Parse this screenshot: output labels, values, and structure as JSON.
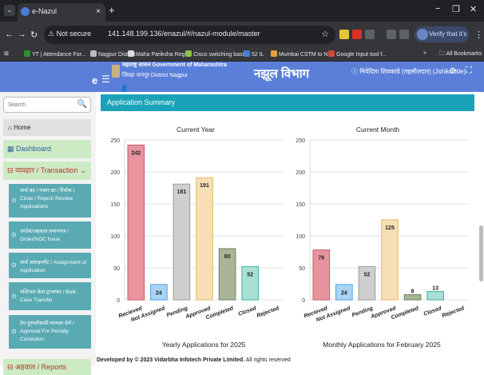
{
  "browser": {
    "tab_title": "e-Nazul",
    "tab_close": "×",
    "new_tab": "+",
    "not_secure": "Not secure",
    "url": "141.148.199.136/enazul/#/nazul-module/master",
    "profile_label": "Verify that it's you",
    "win_min": "−",
    "win_max": "❐",
    "win_close": "✕",
    "bookmarks": [
      {
        "label": "YT | Attendance For...",
        "color": "#2f8f2f"
      },
      {
        "label": "Nagpur District",
        "color": "#bbbbbb"
      },
      {
        "label": "Maha Pariksha Regi...",
        "color": "#dddddd"
      },
      {
        "label": "Cisco switching basi...",
        "color": "#8bc34a"
      },
      {
        "label": "52 IL",
        "color": "#4a7dd8"
      },
      {
        "label": "Mumbai CSTM to N...",
        "color": "#e3a03b"
      },
      {
        "label": "Google Input tool f...",
        "color": "#d44a3a"
      }
    ],
    "all_bookmarks": "All Bookmarks"
  },
  "header": {
    "brand": "e",
    "govt_line": "महाराष्ट्र शासन Government of Maharashtra",
    "district_line": "जिल्हा नागपूर District Nagpur",
    "title": "नझूल विभाग",
    "user_label": "निवेदिता शिवकांडे (तहसीलदार) (Jshikdode)"
  },
  "sidebar": {
    "search_placeholder": "Search",
    "home": "Home",
    "dashboard": "Dashboard",
    "transaction": "व्यवहार / Transaction",
    "sub_items": [
      "अर्ज बंद / नकार द्या / रिवोक / Close / Reject/ Revoke Applications",
      "आदेश/अहवाल प्रमाणपत्र / Order/NOC Issue",
      "अर्ज असाइनमेंट / Assignment of Application",
      "मल्टिपल केस ट्रान्सफर / Bulk Case Transfer",
      "देय दुरुस्तीसाठी मान्यता देणे / Approval For Penalty Correction"
    ],
    "reports": "अहवाल / Reports"
  },
  "content": {
    "summary_title": "Application Summary",
    "footer_bold": "Developed by © 2023 Vidarbha Infotech Private Limited.",
    "footer_rest": " All rights reserved"
  },
  "chart_data": [
    {
      "type": "bar",
      "title": "Current Year",
      "caption": "Yearly Applications for 2025",
      "categories": [
        "Recieved",
        "Not Assigned",
        "Pending",
        "Approved",
        "Completed",
        "Closed",
        "Rejected"
      ],
      "values": [
        242,
        24,
        181,
        191,
        80,
        52,
        0
      ],
      "ylim": [
        0,
        250
      ],
      "yticks": [
        0,
        50,
        100,
        150,
        200,
        250
      ],
      "colors": [
        "#e8949e",
        "#a9d4f5",
        "#cfcfcf",
        "#f7dfb5",
        "#a9b597",
        "#a8e0d5",
        "#cfcfcf"
      ]
    },
    {
      "type": "bar",
      "title": "Current Month",
      "caption": "Monthly Applications for February 2025",
      "categories": [
        "Recieved",
        "Not Assigned",
        "Pending",
        "Approved",
        "Completed",
        "Closed",
        "Rejected"
      ],
      "values": [
        78,
        24,
        52,
        125,
        8,
        13,
        0
      ],
      "ylim": [
        0,
        250
      ],
      "yticks": [
        0,
        50,
        100,
        150,
        200,
        250
      ],
      "colors": [
        "#e8949e",
        "#a9d4f5",
        "#cfcfcf",
        "#f7dfb5",
        "#a9b597",
        "#a8e0d5",
        "#cfcfcf"
      ]
    }
  ]
}
